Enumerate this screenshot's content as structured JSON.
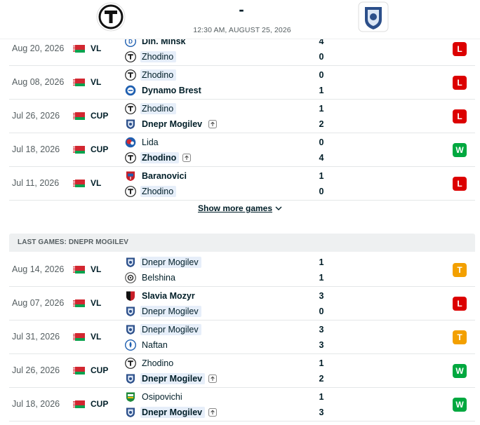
{
  "header": {
    "score_dash": "-",
    "match_time": "12:30 AM, AUGUST 25, 2026"
  },
  "home_games": [
    {
      "date": "Aug 20, 2026",
      "comp": "VL",
      "t1": {
        "name": "Din. Minsk",
        "logo": "dinamo-minsk-logo",
        "bold": true,
        "hl": false,
        "adv": false
      },
      "t2": {
        "name": "Zhodino",
        "logo": "torpedo-zhodino-logo",
        "bold": false,
        "hl": true,
        "adv": false
      },
      "s1": "4",
      "s2": "0",
      "result": "L"
    },
    {
      "date": "Aug 08, 2026",
      "comp": "VL",
      "t1": {
        "name": "Zhodino",
        "logo": "torpedo-zhodino-logo",
        "bold": false,
        "hl": true,
        "adv": false
      },
      "t2": {
        "name": "Dynamo Brest",
        "logo": "dynamo-brest-logo",
        "bold": true,
        "hl": false,
        "adv": false
      },
      "s1": "0",
      "s2": "1",
      "result": "L"
    },
    {
      "date": "Jul 26, 2026",
      "comp": "CUP",
      "t1": {
        "name": "Zhodino",
        "logo": "torpedo-zhodino-logo",
        "bold": false,
        "hl": true,
        "adv": false
      },
      "t2": {
        "name": "Dnepr Mogilev",
        "logo": "dnepr-mogilev-logo",
        "bold": true,
        "hl": false,
        "adv": true
      },
      "s1": "1",
      "s2": "2",
      "result": "L"
    },
    {
      "date": "Jul 18, 2026",
      "comp": "CUP",
      "t1": {
        "name": "Lida",
        "logo": "lida-logo",
        "bold": false,
        "hl": false,
        "adv": false
      },
      "t2": {
        "name": "Zhodino",
        "logo": "torpedo-zhodino-logo",
        "bold": true,
        "hl": true,
        "adv": true
      },
      "s1": "0",
      "s2": "4",
      "result": "W"
    },
    {
      "date": "Jul 11, 2026",
      "comp": "VL",
      "t1": {
        "name": "Baranovici",
        "logo": "baranovichi-logo",
        "bold": true,
        "hl": false,
        "adv": false
      },
      "t2": {
        "name": "Zhodino",
        "logo": "torpedo-zhodino-logo",
        "bold": false,
        "hl": true,
        "adv": false
      },
      "s1": "1",
      "s2": "0",
      "result": "L"
    }
  ],
  "show_more_label": "Show more games",
  "away_section_title": "LAST GAMES: DNEPR MOGILEV",
  "away_games": [
    {
      "date": "Aug 14, 2026",
      "comp": "VL",
      "t1": {
        "name": "Dnepr Mogilev",
        "logo": "dnepr-mogilev-logo",
        "bold": false,
        "hl": true,
        "adv": false
      },
      "t2": {
        "name": "Belshina",
        "logo": "belshina-logo",
        "bold": false,
        "hl": false,
        "adv": false
      },
      "s1": "1",
      "s2": "1",
      "result": "T"
    },
    {
      "date": "Aug 07, 2026",
      "comp": "VL",
      "t1": {
        "name": "Slavia Mozyr",
        "logo": "slavia-mozyr-logo",
        "bold": true,
        "hl": false,
        "adv": false
      },
      "t2": {
        "name": "Dnepr Mogilev",
        "logo": "dnepr-mogilev-logo",
        "bold": false,
        "hl": true,
        "adv": false
      },
      "s1": "3",
      "s2": "0",
      "result": "L"
    },
    {
      "date": "Jul 31, 2026",
      "comp": "VL",
      "t1": {
        "name": "Dnepr Mogilev",
        "logo": "dnepr-mogilev-logo",
        "bold": false,
        "hl": true,
        "adv": false
      },
      "t2": {
        "name": "Naftan",
        "logo": "naftan-logo",
        "bold": false,
        "hl": false,
        "adv": false
      },
      "s1": "3",
      "s2": "3",
      "result": "T"
    },
    {
      "date": "Jul 26, 2026",
      "comp": "CUP",
      "t1": {
        "name": "Zhodino",
        "logo": "torpedo-zhodino-logo",
        "bold": false,
        "hl": false,
        "adv": false
      },
      "t2": {
        "name": "Dnepr Mogilev",
        "logo": "dnepr-mogilev-logo",
        "bold": true,
        "hl": true,
        "adv": true
      },
      "s1": "1",
      "s2": "2",
      "result": "W"
    },
    {
      "date": "Jul 18, 2026",
      "comp": "CUP",
      "t1": {
        "name": "Osipovichi",
        "logo": "osipovichi-logo",
        "bold": false,
        "hl": false,
        "adv": false
      },
      "t2": {
        "name": "Dnepr Mogilev",
        "logo": "dnepr-mogilev-logo",
        "bold": true,
        "hl": true,
        "adv": true
      },
      "s1": "1",
      "s2": "3",
      "result": "W"
    }
  ],
  "colors": {
    "loss": "#dc0000",
    "win": "#00a83f",
    "draw": "#f3a000",
    "highlight": "#e6eef9"
  }
}
